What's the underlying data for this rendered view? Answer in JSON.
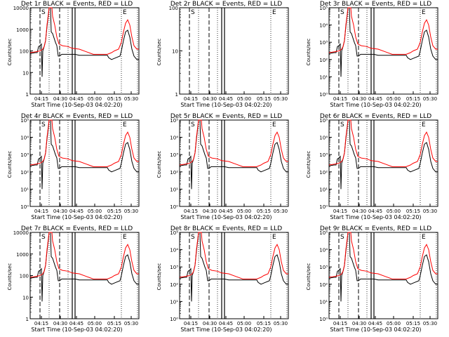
{
  "figure": {
    "x_axis_label": "Start Time (10-Sep-03 04:02:20)",
    "y_axis_label": "Counts/sec",
    "legend_text": "BLACK = Events, RED = LLD",
    "line_colors": {
      "events": "#000000",
      "lld": "#ff0000"
    },
    "marker_labels": {
      "start": "S",
      "end": "E"
    }
  },
  "chart_data": [
    {
      "type": "line",
      "title": "Det 1r BLACK = Events, RED = LLD",
      "ylim": [
        1,
        10000
      ],
      "ytick_labels": [
        "1",
        "10",
        "100",
        "1000",
        "10000"
      ],
      "tick_labels": [
        "04:15",
        "04:30",
        "04:45",
        "05:00",
        "05:15",
        "05:30"
      ],
      "x_range": [
        "04:02:20",
        "05:40"
      ],
      "series": [
        {
          "name": "Events",
          "color": "#000000"
        },
        {
          "name": "LLD",
          "color": "#ff0000"
        }
      ]
    },
    {
      "type": "line",
      "title": "Det 2r BLACK = Events, RED = LLD",
      "ylim": [
        1,
        100
      ],
      "ytick_labels": [
        "1",
        "10",
        "100"
      ],
      "tick_labels": [
        "04:15",
        "04:30",
        "04:45",
        "05:00",
        "05:15",
        "05:30"
      ],
      "x_range": [
        "04:02:20",
        "05:40"
      ],
      "series": [
        {
          "name": "Events",
          "color": "#000000"
        },
        {
          "name": "LLD",
          "color": "#ff0000"
        }
      ]
    },
    {
      "type": "line",
      "title": "Det 3r BLACK = Events, RED = LLD",
      "ylim": [
        1,
        100000
      ],
      "ytick_labels": [
        "10⁰",
        "10¹",
        "10²",
        "10³",
        "10⁴",
        "10⁵"
      ],
      "tick_labels": [
        "04:15",
        "04:30",
        "04:45",
        "05:00",
        "05:15",
        "05:30"
      ],
      "x_range": [
        "04:02:20",
        "05:40"
      ],
      "series": [
        {
          "name": "Events",
          "color": "#000000"
        },
        {
          "name": "LLD",
          "color": "#ff0000"
        }
      ]
    },
    {
      "type": "line",
      "title": "Det 4r BLACK = Events, RED = LLD",
      "ylim": [
        1,
        100000
      ],
      "ytick_labels": [
        "10⁰",
        "10¹",
        "10²",
        "10³",
        "10⁴",
        "10⁵"
      ],
      "tick_labels": [
        "04:15",
        "04:30",
        "04:45",
        "05:00",
        "05:15",
        "05:30"
      ],
      "x_range": [
        "04:02:20",
        "05:40"
      ],
      "series": [
        {
          "name": "Events",
          "color": "#000000"
        },
        {
          "name": "LLD",
          "color": "#ff0000"
        }
      ]
    },
    {
      "type": "line",
      "title": "Det 5r BLACK = Events, RED = LLD",
      "ylim": [
        1,
        100000
      ],
      "ytick_labels": [
        "10⁰",
        "10¹",
        "10²",
        "10³",
        "10⁴",
        "10⁵"
      ],
      "tick_labels": [
        "04:15",
        "04:30",
        "04:45",
        "05:00",
        "05:15",
        "05:30"
      ],
      "x_range": [
        "04:02:20",
        "05:40"
      ],
      "series": [
        {
          "name": "Events",
          "color": "#000000"
        },
        {
          "name": "LLD",
          "color": "#ff0000"
        }
      ]
    },
    {
      "type": "line",
      "title": "Det 6r BLACK = Events, RED = LLD",
      "ylim": [
        1,
        100000
      ],
      "ytick_labels": [
        "10⁰",
        "10¹",
        "10²",
        "10³",
        "10⁴",
        "10⁵"
      ],
      "tick_labels": [
        "04:15",
        "04:30",
        "04:45",
        "05:00",
        "05:15",
        "05:30"
      ],
      "x_range": [
        "04:02:20",
        "05:40"
      ],
      "series": [
        {
          "name": "Events",
          "color": "#000000"
        },
        {
          "name": "LLD",
          "color": "#ff0000"
        }
      ]
    },
    {
      "type": "line",
      "title": "Det 7r BLACK = Events, RED = LLD",
      "ylim": [
        1,
        10000
      ],
      "ytick_labels": [
        "1",
        "10",
        "100",
        "1000",
        "10000"
      ],
      "tick_labels": [
        "04:15",
        "04:30",
        "04:45",
        "05:00",
        "05:15",
        "05:30"
      ],
      "x_range": [
        "04:02:20",
        "05:40"
      ],
      "series": [
        {
          "name": "Events",
          "color": "#000000"
        },
        {
          "name": "LLD",
          "color": "#ff0000"
        }
      ]
    },
    {
      "type": "line",
      "title": "Det 8r BLACK = Events, RED = LLD",
      "ylim": [
        1,
        100000
      ],
      "ytick_labels": [
        "10⁰",
        "10¹",
        "10²",
        "10³",
        "10⁴",
        "10⁵"
      ],
      "tick_labels": [
        "04:15",
        "04:30",
        "04:45",
        "05:00",
        "05:15",
        "05:30"
      ],
      "x_range": [
        "04:02:20",
        "05:40"
      ],
      "series": [
        {
          "name": "Events",
          "color": "#000000"
        },
        {
          "name": "LLD",
          "color": "#ff0000"
        }
      ]
    },
    {
      "type": "line",
      "title": "Det 9r BLACK = Events, RED = LLD",
      "ylim": [
        1,
        100000
      ],
      "ytick_labels": [
        "10⁰",
        "10¹",
        "10²",
        "10³",
        "10⁴",
        "10⁵"
      ],
      "tick_labels": [
        "04:15",
        "04:30",
        "04:45",
        "05:00",
        "05:15",
        "05:30"
      ],
      "x_range": [
        "04:02:20",
        "05:40"
      ],
      "series": [
        {
          "name": "Events",
          "color": "#000000"
        },
        {
          "name": "LLD",
          "color": "#ff0000"
        }
      ]
    }
  ]
}
